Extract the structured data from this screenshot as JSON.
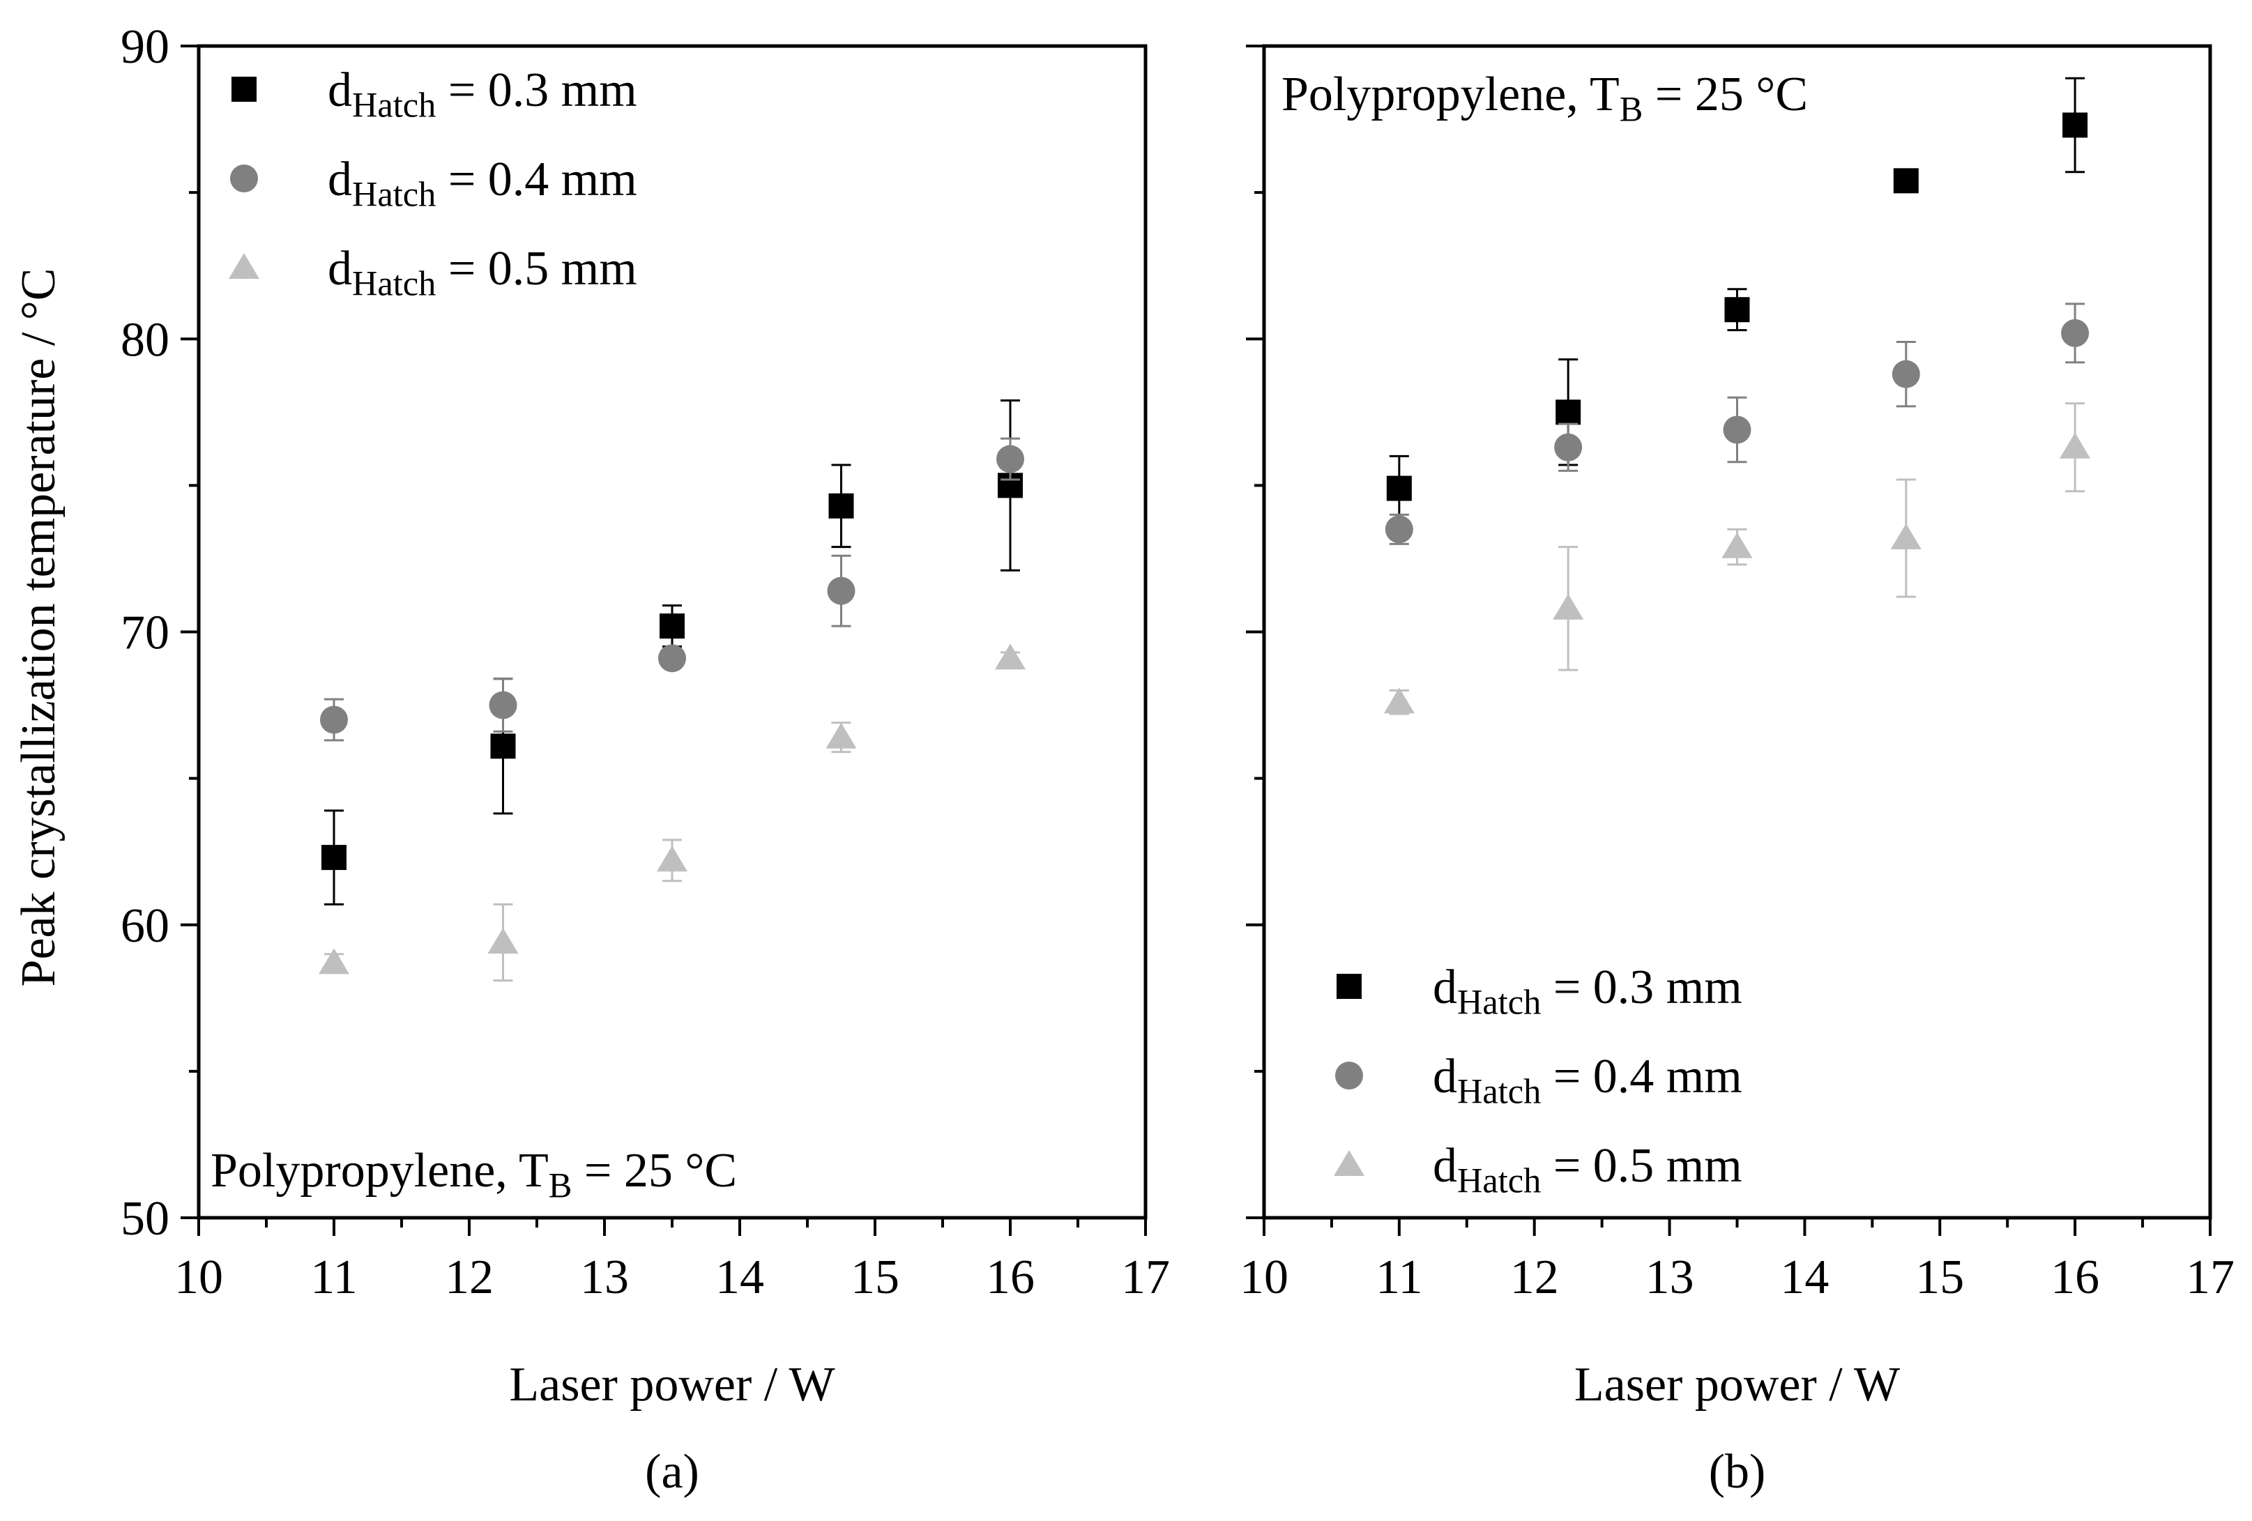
{
  "figure": {
    "ylabel": "Peak crystallization temperature / °C",
    "xlabel": "Laser power / W",
    "colors": {
      "s03": "#000000",
      "s04": "#808080",
      "s05": "#bfbfbf",
      "axis": "#000000"
    }
  },
  "chart_data": [
    {
      "type": "scatter",
      "panel_label": "(a)",
      "annotation": {
        "main": "Polypropylene, T",
        "sub": "B",
        "rest": " = 25 °C",
        "placement": "bottom-left"
      },
      "xlabel": "Laser power / W",
      "ylabel": "Peak crystallization temperature / °C",
      "xlim": [
        10,
        17
      ],
      "ylim": [
        50,
        90
      ],
      "xticks": [
        "10",
        "11",
        "12",
        "13",
        "14",
        "15",
        "16",
        "17"
      ],
      "yticks": [
        "50",
        "60",
        "70",
        "80",
        "90"
      ],
      "legend_placement": "top-left",
      "series": [
        {
          "name": "dHatch = 0.3 mm",
          "label_main": "d",
          "label_sub": "Hatch",
          "label_rest": " = 0.3 mm",
          "marker": "square",
          "color": "#000000",
          "points": [
            {
              "x": 11,
              "y": 62.3,
              "err": 1.6
            },
            {
              "x": 12.25,
              "y": 66.1,
              "err": 2.3
            },
            {
              "x": 13.5,
              "y": 70.2,
              "err": 0.7
            },
            {
              "x": 14.75,
              "y": 74.3,
              "err": 1.4
            },
            {
              "x": 16,
              "y": 75.0,
              "err": 2.9
            }
          ]
        },
        {
          "name": "dHatch = 0.4 mm",
          "label_main": "d",
          "label_sub": "Hatch",
          "label_rest": " = 0.4 mm",
          "marker": "circle",
          "color": "#808080",
          "points": [
            {
              "x": 11,
              "y": 67.0,
              "err": 0.7
            },
            {
              "x": 12.25,
              "y": 67.5,
              "err": 0.9
            },
            {
              "x": 13.5,
              "y": 69.1,
              "err": 0.3
            },
            {
              "x": 14.75,
              "y": 71.4,
              "err": 1.2
            },
            {
              "x": 16,
              "y": 75.9,
              "err": 0.7
            }
          ]
        },
        {
          "name": "dHatch = 0.5 mm",
          "label_main": "d",
          "label_sub": "Hatch",
          "label_rest": " = 0.5 mm",
          "marker": "triangle",
          "color": "#bfbfbf",
          "points": [
            {
              "x": 11,
              "y": 58.7,
              "err": 0.3
            },
            {
              "x": 12.25,
              "y": 59.4,
              "err": 1.3
            },
            {
              "x": 13.5,
              "y": 62.2,
              "err": 0.7
            },
            {
              "x": 14.75,
              "y": 66.4,
              "err": 0.5
            },
            {
              "x": 16,
              "y": 69.1,
              "err": 0.2
            }
          ]
        }
      ]
    },
    {
      "type": "scatter",
      "panel_label": "(b)",
      "annotation": {
        "main": "Polypropylene, T",
        "sub": "B",
        "rest": " = 25 °C",
        "placement": "top-left"
      },
      "xlabel": "Laser power / W",
      "ylabel": "Peak crystallization temperature / °C",
      "xlim": [
        10,
        17
      ],
      "ylim": [
        50,
        90
      ],
      "xticks": [
        "10",
        "11",
        "12",
        "13",
        "14",
        "15",
        "16",
        "17"
      ],
      "yticks": [
        "50",
        "60",
        "70",
        "80",
        "90"
      ],
      "legend_placement": "bottom-left",
      "series": [
        {
          "name": "dHatch = 0.3 mm",
          "label_main": "d",
          "label_sub": "Hatch",
          "label_rest": " = 0.3 mm",
          "marker": "square",
          "color": "#000000",
          "points": [
            {
              "x": 11,
              "y": 74.9,
              "err": 1.1
            },
            {
              "x": 12.25,
              "y": 77.5,
              "err": 1.8
            },
            {
              "x": 13.5,
              "y": 81.0,
              "err": 0.7
            },
            {
              "x": 14.75,
              "y": 85.4,
              "err": 0.2
            },
            {
              "x": 16,
              "y": 87.3,
              "err": 1.6
            }
          ]
        },
        {
          "name": "dHatch = 0.4 mm",
          "label_main": "d",
          "label_sub": "Hatch",
          "label_rest": " = 0.4 mm",
          "marker": "circle",
          "color": "#808080",
          "points": [
            {
              "x": 11,
              "y": 73.5,
              "err": 0.5
            },
            {
              "x": 12.25,
              "y": 76.3,
              "err": 0.8
            },
            {
              "x": 13.5,
              "y": 76.9,
              "err": 1.1
            },
            {
              "x": 14.75,
              "y": 78.8,
              "err": 1.1
            },
            {
              "x": 16,
              "y": 80.2,
              "err": 1.0
            }
          ]
        },
        {
          "name": "dHatch = 0.5 mm",
          "label_main": "d",
          "label_sub": "Hatch",
          "label_rest": " = 0.5 mm",
          "marker": "triangle",
          "color": "#bfbfbf",
          "points": [
            {
              "x": 11,
              "y": 67.6,
              "err": 0.4
            },
            {
              "x": 12.25,
              "y": 70.8,
              "err": 2.1
            },
            {
              "x": 13.5,
              "y": 72.9,
              "err": 0.6
            },
            {
              "x": 14.75,
              "y": 73.2,
              "err": 2.0
            },
            {
              "x": 16,
              "y": 76.3,
              "err": 1.5
            }
          ]
        }
      ]
    }
  ]
}
